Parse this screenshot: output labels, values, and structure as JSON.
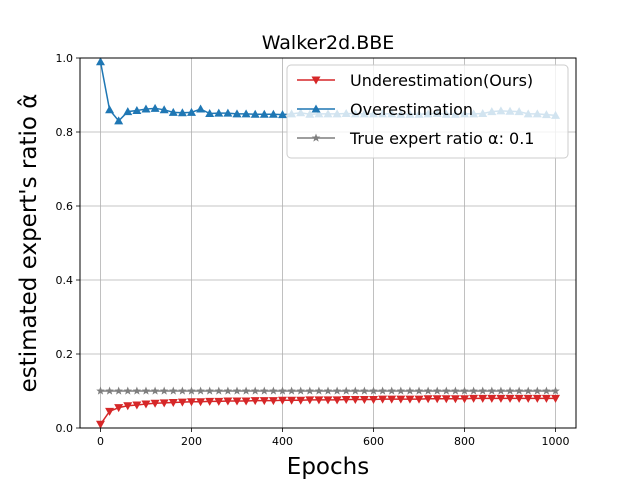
{
  "chart_data": {
    "type": "line",
    "title": "Walker2d.BBE",
    "xlabel": "Epochs",
    "ylabel": "estimated expert's ratio α̂",
    "xlim": [
      -45,
      1045
    ],
    "ylim": [
      0.0,
      1.0
    ],
    "x_ticks": [
      0,
      200,
      400,
      600,
      800,
      1000
    ],
    "y_ticks": [
      0.0,
      0.2,
      0.4,
      0.6,
      0.8,
      1.0
    ],
    "x_tick_labels": [
      "0",
      "200",
      "400",
      "600",
      "800",
      "1000"
    ],
    "y_tick_labels": [
      "0.0",
      "0.2",
      "0.4",
      "0.6",
      "0.8",
      "1.0"
    ],
    "grid": true,
    "legend_position": "top-right",
    "x": [
      0,
      20,
      40,
      60,
      80,
      100,
      120,
      140,
      160,
      180,
      200,
      220,
      240,
      260,
      280,
      300,
      320,
      340,
      360,
      380,
      400,
      420,
      440,
      460,
      480,
      500,
      520,
      540,
      560,
      580,
      600,
      620,
      640,
      660,
      680,
      700,
      720,
      740,
      760,
      780,
      800,
      820,
      840,
      860,
      880,
      900,
      920,
      940,
      960,
      980,
      1000
    ],
    "series": [
      {
        "name": "Underestimation(Ours)",
        "color": "#d62728",
        "marker": "triangle-down",
        "values": [
          0.01,
          0.045,
          0.055,
          0.06,
          0.062,
          0.065,
          0.067,
          0.068,
          0.069,
          0.07,
          0.071,
          0.071,
          0.072,
          0.072,
          0.073,
          0.073,
          0.073,
          0.074,
          0.074,
          0.074,
          0.075,
          0.075,
          0.075,
          0.076,
          0.076,
          0.076,
          0.076,
          0.077,
          0.077,
          0.077,
          0.077,
          0.078,
          0.078,
          0.078,
          0.078,
          0.078,
          0.079,
          0.079,
          0.079,
          0.079,
          0.079,
          0.08,
          0.08,
          0.08,
          0.08,
          0.08,
          0.08,
          0.08,
          0.08,
          0.08,
          0.08
        ]
      },
      {
        "name": "Overestimation",
        "color": "#1f77b4",
        "marker": "triangle-up",
        "values": [
          0.99,
          0.86,
          0.83,
          0.855,
          0.858,
          0.862,
          0.864,
          0.86,
          0.853,
          0.852,
          0.853,
          0.862,
          0.85,
          0.851,
          0.851,
          0.849,
          0.849,
          0.848,
          0.848,
          0.848,
          0.847,
          0.849,
          0.852,
          0.848,
          0.849,
          0.849,
          0.849,
          0.85,
          0.849,
          0.849,
          0.849,
          0.849,
          0.849,
          0.848,
          0.848,
          0.848,
          0.849,
          0.85,
          0.848,
          0.848,
          0.849,
          0.849,
          0.85,
          0.855,
          0.857,
          0.856,
          0.855,
          0.849,
          0.849,
          0.847,
          0.845
        ]
      },
      {
        "name": "True expert ratio α: 0.1",
        "color": "#7f7f7f",
        "marker": "star",
        "values": [
          0.1,
          0.1,
          0.1,
          0.1,
          0.1,
          0.1,
          0.1,
          0.1,
          0.1,
          0.1,
          0.1,
          0.1,
          0.1,
          0.1,
          0.1,
          0.1,
          0.1,
          0.1,
          0.1,
          0.1,
          0.1,
          0.1,
          0.1,
          0.1,
          0.1,
          0.1,
          0.1,
          0.1,
          0.1,
          0.1,
          0.1,
          0.1,
          0.1,
          0.1,
          0.1,
          0.1,
          0.1,
          0.1,
          0.1,
          0.1,
          0.1,
          0.1,
          0.1,
          0.1,
          0.1,
          0.1,
          0.1,
          0.1,
          0.1,
          0.1,
          0.1
        ]
      }
    ]
  }
}
